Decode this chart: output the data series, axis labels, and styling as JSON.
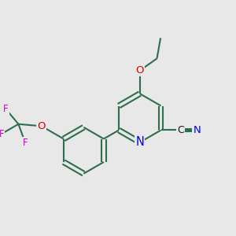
{
  "bg_color": "#e8e8e8",
  "bond_color": "#2d6e4e",
  "bond_width": 1.5,
  "N_color": "#0000ee",
  "O_color": "#dd0000",
  "F_color": "#cc00cc",
  "C_color": "#111111",
  "font_size_atom": 9.5,
  "fig_width": 3.0,
  "fig_height": 3.0,
  "dpi": 100,
  "xlim": [
    0,
    10
  ],
  "ylim": [
    0,
    10
  ]
}
